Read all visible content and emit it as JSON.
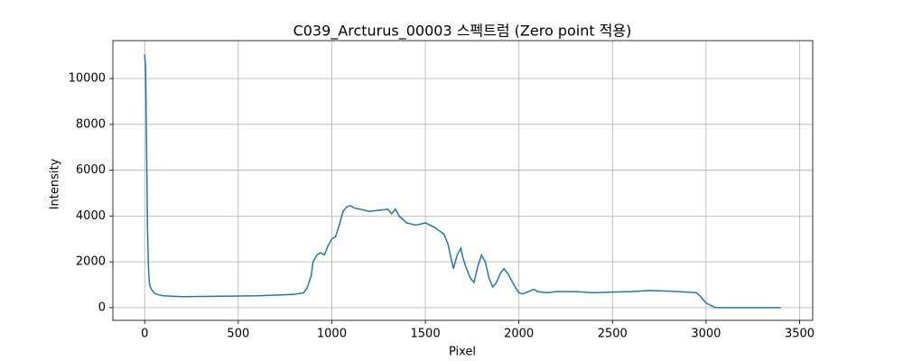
{
  "chart_data": {
    "type": "line",
    "title": "C039_Arcturus_00003 스펙트럼 (Zero point 적용)",
    "x_label": "Pixel",
    "y_label": "Intensity",
    "x": [
      0,
      5,
      10,
      15,
      20,
      25,
      30,
      40,
      50,
      60,
      80,
      100,
      150,
      200,
      300,
      400,
      500,
      600,
      700,
      800,
      850,
      870,
      890,
      900,
      920,
      940,
      960,
      980,
      1000,
      1020,
      1040,
      1060,
      1080,
      1100,
      1120,
      1150,
      1200,
      1250,
      1300,
      1320,
      1340,
      1360,
      1400,
      1450,
      1500,
      1550,
      1600,
      1620,
      1650,
      1670,
      1690,
      1700,
      1720,
      1740,
      1760,
      1780,
      1800,
      1820,
      1840,
      1860,
      1880,
      1900,
      1920,
      1940,
      1960,
      1980,
      2000,
      2020,
      2050,
      2080,
      2100,
      2150,
      2200,
      2300,
      2400,
      2500,
      2600,
      2700,
      2800,
      2900,
      2950,
      2970,
      3000,
      3050,
      3100,
      3400
    ],
    "series": [
      {
        "color": "#1f77b4",
        "values": [
          11050,
          10500,
          7000,
          3500,
          1800,
          1100,
          900,
          750,
          650,
          600,
          550,
          520,
          500,
          480,
          490,
          500,
          510,
          520,
          550,
          580,
          650,
          900,
          1400,
          2000,
          2300,
          2400,
          2300,
          2700,
          3000,
          3100,
          3600,
          4200,
          4400,
          4450,
          4350,
          4300,
          4200,
          4250,
          4300,
          4100,
          4300,
          4000,
          3700,
          3600,
          3700,
          3500,
          3200,
          2800,
          1700,
          2300,
          2600,
          2200,
          1700,
          1300,
          1100,
          1800,
          2300,
          2000,
          1300,
          900,
          1100,
          1500,
          1700,
          1500,
          1200,
          900,
          650,
          600,
          700,
          800,
          700,
          650,
          700,
          700,
          650,
          680,
          700,
          750,
          720,
          680,
          650,
          500,
          200,
          0,
          0,
          0
        ]
      }
    ],
    "xlim": [
      -170,
      3570
    ],
    "ylim": [
      -555,
      11655
    ],
    "xticks": [
      0,
      500,
      1000,
      1500,
      2000,
      2500,
      3000,
      3500
    ],
    "yticks": [
      0,
      2000,
      4000,
      6000,
      8000,
      10000
    ],
    "grid": true
  }
}
